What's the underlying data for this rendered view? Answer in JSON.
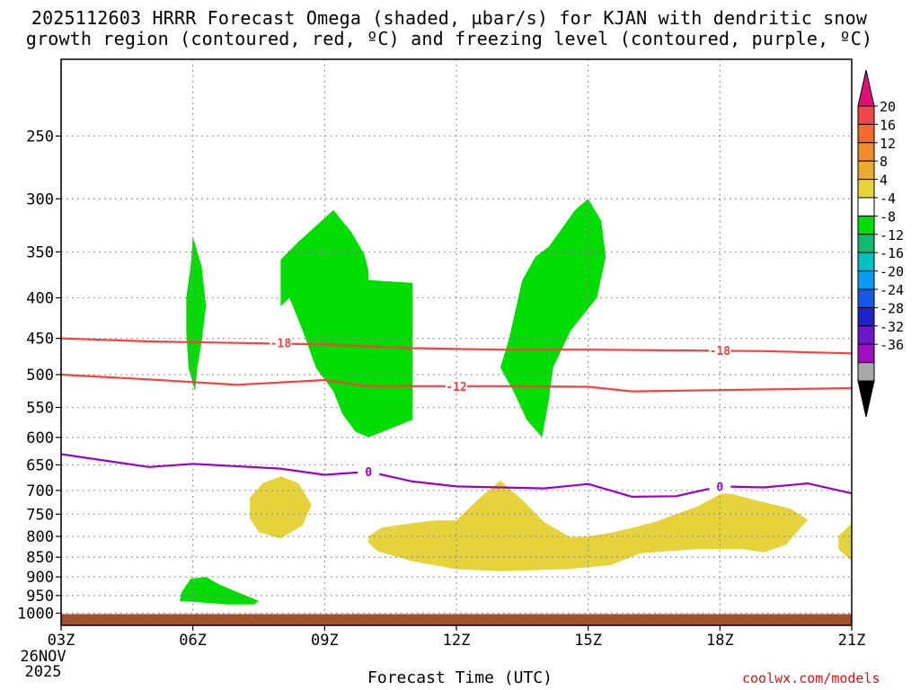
{
  "title": {
    "line1": "2025112603 HRRR Forecast Omega (shaded, µbar/s) for KJAN with dendritic snow",
    "line2": "growth region (contoured, red, ºC) and freezing level (contoured, purple, ºC)"
  },
  "footer": {
    "xlabel": "Forecast Time (UTC)",
    "credit": "coolwx.com/models"
  },
  "chart_data": {
    "type": "time-height cross section",
    "x_ticks": [
      "03Z",
      "06Z",
      "09Z",
      "12Z",
      "15Z",
      "18Z",
      "21Z"
    ],
    "x_start_date": [
      "26NOV",
      "2025"
    ],
    "y_ticks": [
      250,
      300,
      350,
      400,
      450,
      500,
      550,
      600,
      650,
      700,
      750,
      800,
      850,
      900,
      950,
      1000
    ],
    "y_axis": "pressure (hPa), reversed log scale",
    "grid": true,
    "colorbar": {
      "labels": [
        "20",
        "16",
        "12",
        "8",
        "4",
        "-4",
        "-8",
        "-12",
        "-16",
        "-20",
        "-24",
        "-28",
        "-32",
        "-36"
      ],
      "colors_top_to_bottom": [
        "#dd1177",
        "#f04848",
        "#ef6b2c",
        "#f08c2a",
        "#e8ad30",
        "#e6d23a",
        "#ffffff",
        "#00dd00",
        "#10bb70",
        "#00c0c0",
        "#0a9cf0",
        "#1858e8",
        "#2020c8",
        "#6a18c8",
        "#a010c0",
        "#a8a8a8",
        "#000000"
      ]
    },
    "dendritic_contours": [
      {
        "label": "-18",
        "color": "#ff3d3d",
        "points": [
          [
            3,
            450
          ],
          [
            5,
            454
          ],
          [
            7,
            456
          ],
          [
            9,
            458
          ],
          [
            11,
            463
          ],
          [
            13,
            465
          ],
          [
            15,
            465
          ],
          [
            17,
            466
          ],
          [
            19,
            467
          ],
          [
            21,
            470
          ]
        ],
        "labels_at": [
          [
            8,
            456
          ],
          [
            18,
            466
          ]
        ]
      },
      {
        "label": "-12",
        "color": "#ff3d3d",
        "points": [
          [
            3,
            500
          ],
          [
            5,
            507
          ],
          [
            7,
            515
          ],
          [
            9,
            508
          ],
          [
            10,
            517
          ],
          [
            13,
            517
          ],
          [
            15,
            518
          ],
          [
            16,
            525
          ],
          [
            18,
            523
          ],
          [
            21,
            520
          ]
        ],
        "labels_at": [
          [
            12,
            517
          ]
        ]
      }
    ],
    "freezing_level": {
      "label": "0",
      "color": "#9900cc",
      "points": [
        [
          3,
          630
        ],
        [
          5,
          654
        ],
        [
          6,
          648
        ],
        [
          8,
          657
        ],
        [
          9,
          669
        ],
        [
          10,
          663
        ],
        [
          11,
          682
        ],
        [
          12,
          692
        ],
        [
          14,
          696
        ],
        [
          15,
          687
        ],
        [
          16,
          713
        ],
        [
          17,
          712
        ],
        [
          18,
          692
        ],
        [
          19,
          694
        ],
        [
          20,
          686
        ],
        [
          21,
          706
        ]
      ],
      "labels_at": [
        [
          10,
          663
        ],
        [
          18,
          692
        ]
      ]
    },
    "omega_regions": [
      {
        "value_range": "-4 to -8",
        "color": "#00dd00",
        "points": [
          [
            5.85,
            400
          ],
          [
            5.95,
            365
          ],
          [
            6.0,
            335
          ],
          [
            6.2,
            365
          ],
          [
            6.3,
            410
          ],
          [
            6.2,
            455
          ],
          [
            6.1,
            490
          ],
          [
            6.05,
            525
          ],
          [
            5.9,
            490
          ],
          [
            5.85,
            440
          ]
        ]
      },
      {
        "value_range": "-4 to -8",
        "color": "#00dd00",
        "points": [
          [
            8.0,
            358
          ],
          [
            8.4,
            340
          ],
          [
            9.2,
            310
          ],
          [
            9.6,
            330
          ],
          [
            9.9,
            352
          ],
          [
            10.0,
            370
          ],
          [
            10.0,
            380
          ],
          [
            11.0,
            383
          ],
          [
            11.0,
            570
          ],
          [
            10.5,
            585
          ],
          [
            10.0,
            600
          ],
          [
            9.7,
            590
          ],
          [
            9.4,
            560
          ],
          [
            9.2,
            525
          ],
          [
            8.8,
            490
          ],
          [
            8.5,
            440
          ],
          [
            8.2,
            400
          ],
          [
            8.0,
            410
          ]
        ]
      },
      {
        "value_range": "-4 to -8",
        "color": "#00dd00",
        "points": [
          [
            14.1,
            345
          ],
          [
            14.7,
            310
          ],
          [
            15.0,
            300
          ],
          [
            15.3,
            320
          ],
          [
            15.4,
            355
          ],
          [
            15.2,
            400
          ],
          [
            14.6,
            440
          ],
          [
            14.2,
            490
          ],
          [
            14.1,
            540
          ],
          [
            13.95,
            600
          ],
          [
            13.6,
            570
          ],
          [
            13.3,
            525
          ],
          [
            13.0,
            490
          ],
          [
            13.2,
            450
          ],
          [
            13.5,
            380
          ],
          [
            13.8,
            355
          ]
        ]
      },
      {
        "value_range": "-4 to -8",
        "color": "#00dd00",
        "points": [
          [
            5.75,
            940
          ],
          [
            5.95,
            905
          ],
          [
            6.3,
            900
          ],
          [
            6.6,
            920
          ],
          [
            7.2,
            950
          ],
          [
            7.5,
            965
          ],
          [
            7.4,
            975
          ],
          [
            6.8,
            975
          ],
          [
            5.7,
            965
          ]
        ]
      },
      {
        "value_range": "4 to 8",
        "color": "#e6d23a",
        "points": [
          [
            7.3,
            715
          ],
          [
            7.6,
            685
          ],
          [
            8.0,
            672
          ],
          [
            8.4,
            685
          ],
          [
            8.7,
            730
          ],
          [
            8.5,
            775
          ],
          [
            8.0,
            805
          ],
          [
            7.5,
            790
          ],
          [
            7.3,
            760
          ]
        ]
      },
      {
        "value_range": "4 to 8",
        "color": "#e6d23a",
        "points": [
          [
            10.0,
            800
          ],
          [
            10.3,
            780
          ],
          [
            11.0,
            770
          ],
          [
            11.5,
            764
          ],
          [
            12.0,
            764
          ],
          [
            12.5,
            718
          ],
          [
            13.0,
            680
          ],
          [
            13.5,
            720
          ],
          [
            14.0,
            768
          ],
          [
            14.6,
            802
          ],
          [
            15.0,
            800
          ],
          [
            15.6,
            790
          ],
          [
            16.5,
            768
          ],
          [
            17.5,
            733
          ],
          [
            18.1,
            703
          ],
          [
            18.8,
            720
          ],
          [
            19.6,
            738
          ],
          [
            20.0,
            762
          ],
          [
            19.5,
            820
          ],
          [
            19.0,
            838
          ],
          [
            18.5,
            830
          ],
          [
            17.5,
            830
          ],
          [
            16.2,
            840
          ],
          [
            15.5,
            870
          ],
          [
            14.5,
            880
          ],
          [
            13.0,
            885
          ],
          [
            12.0,
            880
          ],
          [
            11.0,
            860
          ],
          [
            10.2,
            835
          ],
          [
            10.0,
            815
          ]
        ]
      },
      {
        "value_range": "4 to 8",
        "color": "#e6d23a",
        "points": [
          [
            20.7,
            800
          ],
          [
            21.0,
            770
          ],
          [
            21.0,
            860
          ],
          [
            20.7,
            830
          ]
        ]
      }
    ],
    "terrain": {
      "color": "#a0522d",
      "top_pressure_hpa": 1000
    }
  }
}
